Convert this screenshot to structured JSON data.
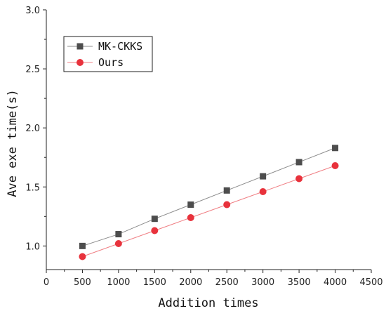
{
  "chart_data": {
    "type": "line",
    "title": "",
    "xlabel": "Addition times",
    "ylabel": "Ave exe time(s)",
    "xlim": [
      0,
      4500
    ],
    "ylim": [
      0.8,
      3.0
    ],
    "x_ticks": [
      "0",
      "500",
      "1000",
      "1500",
      "2000",
      "2500",
      "3000",
      "3500",
      "4000",
      "4500"
    ],
    "y_ticks": [
      "1.0",
      "1.5",
      "2.0",
      "2.5",
      "3.0"
    ],
    "x": [
      500,
      1000,
      1500,
      2000,
      2500,
      3000,
      3500,
      4000
    ],
    "series": [
      {
        "name": "MK-CKKS",
        "marker": "square",
        "color": "#4d4d4d",
        "line_color": "#8c8c8c",
        "values": [
          1.0,
          1.1,
          1.23,
          1.35,
          1.47,
          1.59,
          1.71,
          1.83
        ]
      },
      {
        "name": "Ours",
        "marker": "circle",
        "color": "#e8323c",
        "line_color": "#f07f84",
        "values": [
          0.91,
          1.02,
          1.13,
          1.24,
          1.35,
          1.46,
          1.57,
          1.68
        ]
      }
    ],
    "grid": false,
    "legend_position": "top-left"
  }
}
